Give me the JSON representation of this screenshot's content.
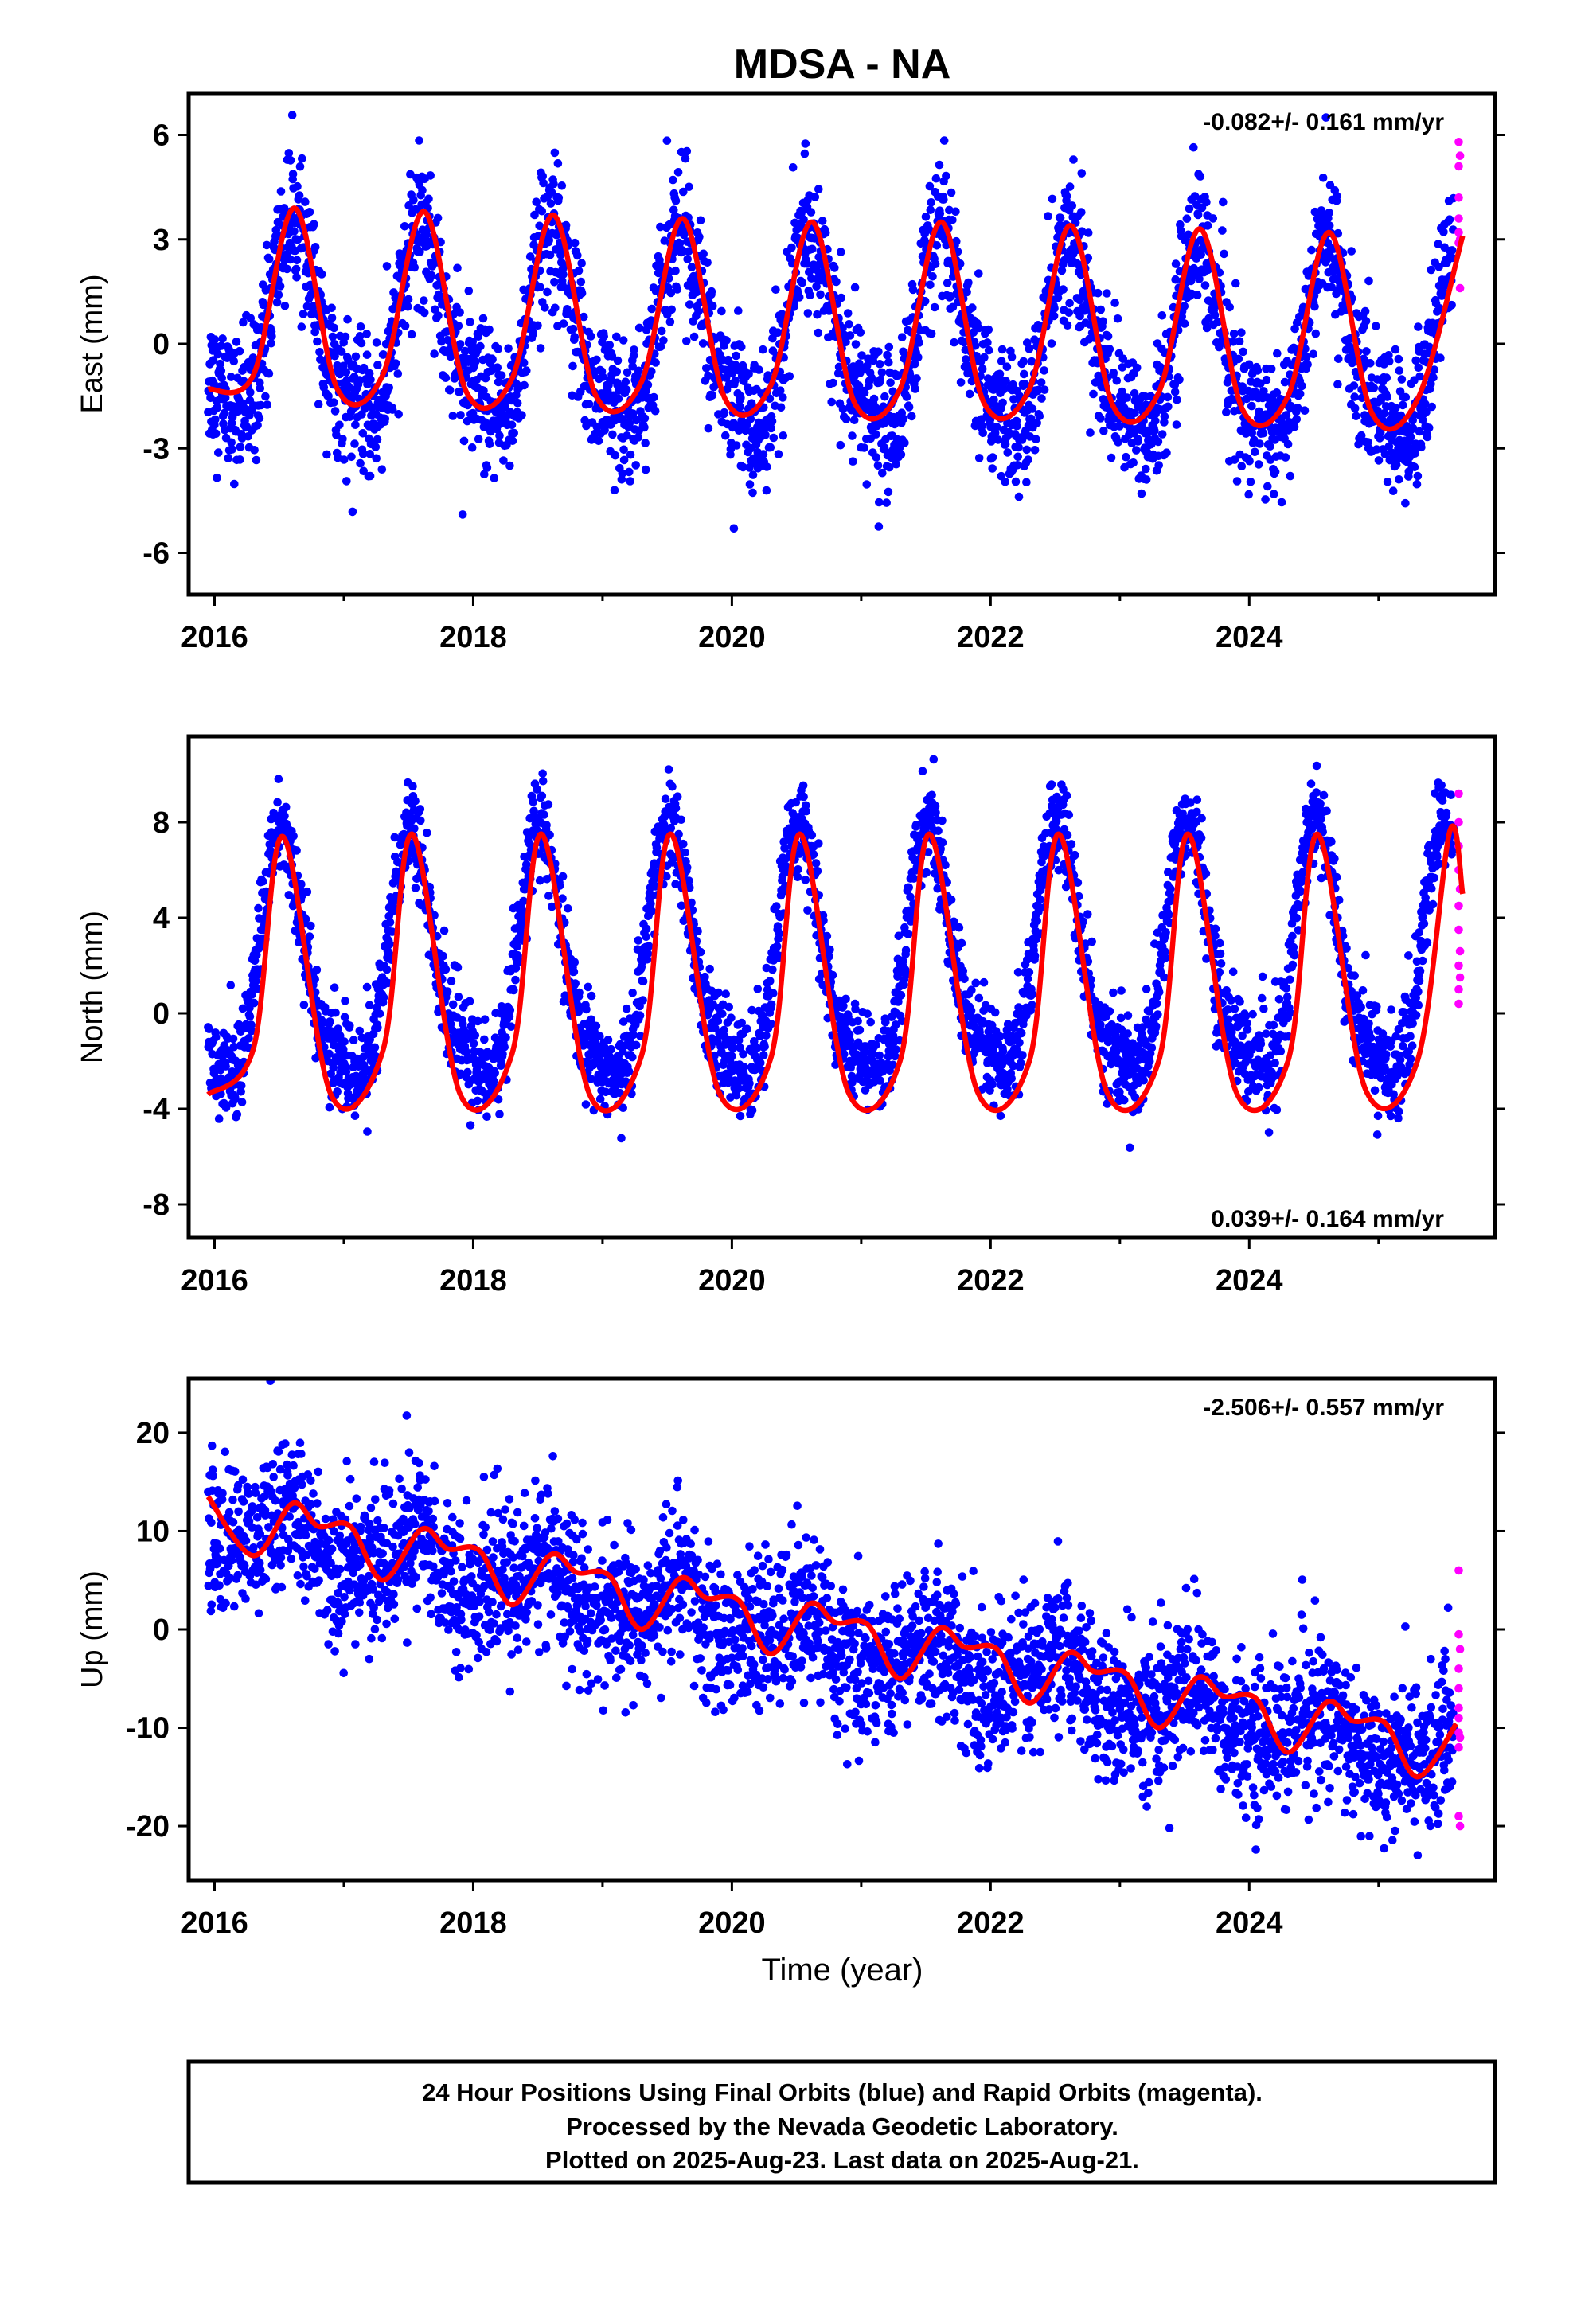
{
  "figure": {
    "title": "MDSA - NA",
    "xlabel": "Time (year)",
    "footer_lines": [
      "24 Hour Positions Using Final Orbits (blue) and Rapid Orbits (magenta).",
      "Processed by the Nevada Geodetic Laboratory.",
      "Plotted on 2025-Aug-23. Last data on 2025-Aug-21."
    ]
  },
  "colors": {
    "final_orbits": "#0000ff",
    "rapid_orbits": "#ff00ff",
    "model_fit": "#ff0000",
    "axes": "#000000"
  },
  "chart_data": [
    {
      "type": "scatter",
      "ylabel": "East (mm)",
      "rate_label": "-0.082+/- 0.161 mm/yr",
      "rate_value": -0.082,
      "rate_uncertainty": 0.161,
      "rate_position": "top-right",
      "xlim": [
        2015.8,
        2025.9
      ],
      "ylim": [
        -7.2,
        7.2
      ],
      "xticks": [
        2016,
        2018,
        2020,
        2022,
        2024
      ],
      "yticks": [
        -6,
        -3,
        0,
        3,
        6
      ],
      "model": {
        "offset": 0.0,
        "trend": -0.082,
        "annual_amp": 2.6,
        "annual_peak": 0.62,
        "semiannual_amp": 0.7,
        "semiannual_peak": 0.58,
        "scatter": 1.0
      },
      "model_curve": [
        [
          2015.95,
          -1.3
        ],
        [
          2016.3,
          -0.9
        ],
        [
          2016.62,
          3.9
        ],
        [
          2016.95,
          -1.3
        ],
        [
          2017.3,
          -0.9
        ],
        [
          2017.62,
          3.8
        ],
        [
          2017.95,
          -1.4
        ],
        [
          2018.3,
          -1.0
        ],
        [
          2018.62,
          3.7
        ],
        [
          2018.95,
          -1.5
        ],
        [
          2019.3,
          -1.1
        ],
        [
          2019.62,
          3.6
        ],
        [
          2019.95,
          -1.6
        ],
        [
          2020.3,
          -1.2
        ],
        [
          2020.62,
          3.5
        ],
        [
          2020.95,
          -1.7
        ],
        [
          2021.3,
          -1.3
        ],
        [
          2021.62,
          3.5
        ],
        [
          2021.95,
          -1.7
        ],
        [
          2022.3,
          -1.3
        ],
        [
          2022.62,
          3.4
        ],
        [
          2022.95,
          -1.8
        ],
        [
          2023.3,
          -1.4
        ],
        [
          2023.62,
          3.3
        ],
        [
          2023.95,
          -1.9
        ],
        [
          2024.3,
          -1.5
        ],
        [
          2024.62,
          3.2
        ],
        [
          2024.95,
          -2.0
        ],
        [
          2025.3,
          -1.6
        ],
        [
          2025.65,
          3.1
        ]
      ],
      "rapid_points": [
        [
          2025.62,
          5.8
        ],
        [
          2025.62,
          5.1
        ],
        [
          2025.62,
          4.2
        ],
        [
          2025.62,
          3.6
        ],
        [
          2025.62,
          3.2
        ],
        [
          2025.62,
          2.9
        ],
        [
          2025.63,
          5.4
        ],
        [
          2025.63,
          1.6
        ],
        [
          2025.63,
          3.0
        ]
      ]
    },
    {
      "type": "scatter",
      "ylabel": "North (mm)",
      "rate_label": "0.039+/- 0.164 mm/yr",
      "rate_value": 0.039,
      "rate_uncertainty": 0.164,
      "rate_position": "bottom-right",
      "xlim": [
        2015.8,
        2025.9
      ],
      "ylim": [
        -9.4,
        11.6
      ],
      "xticks": [
        2016,
        2018,
        2020,
        2022,
        2024
      ],
      "yticks": [
        -8,
        -4,
        0,
        4,
        8
      ],
      "model": {
        "offset": 1.7,
        "trend": 0.039,
        "annual_amp": 5.0,
        "annual_peak": 0.53,
        "semiannual_amp": 1.3,
        "semiannual_peak": 0.5,
        "scatter": 1.0
      },
      "model_curve": [
        [
          2015.95,
          -3.4
        ],
        [
          2016.3,
          -1.5
        ],
        [
          2016.53,
          7.4
        ],
        [
          2016.9,
          -3.4
        ],
        [
          2017.3,
          -1.6
        ],
        [
          2017.53,
          7.5
        ],
        [
          2017.9,
          -3.4
        ],
        [
          2018.3,
          -1.7
        ],
        [
          2018.53,
          7.5
        ],
        [
          2018.9,
          -3.4
        ],
        [
          2019.3,
          -1.8
        ],
        [
          2019.53,
          7.5
        ],
        [
          2019.9,
          -3.3
        ],
        [
          2020.3,
          -1.9
        ],
        [
          2020.53,
          7.5
        ],
        [
          2020.9,
          -3.3
        ],
        [
          2021.3,
          -2.0
        ],
        [
          2021.53,
          7.5
        ],
        [
          2021.9,
          -3.3
        ],
        [
          2022.3,
          -2.0
        ],
        [
          2022.53,
          7.5
        ],
        [
          2022.9,
          -3.3
        ],
        [
          2023.3,
          -2.0
        ],
        [
          2023.53,
          7.5
        ],
        [
          2023.9,
          -3.3
        ],
        [
          2024.3,
          -2.0
        ],
        [
          2024.53,
          7.5
        ],
        [
          2024.9,
          -3.2
        ],
        [
          2025.3,
          -2.0
        ],
        [
          2025.55,
          7.6
        ],
        [
          2025.65,
          5.0
        ]
      ],
      "rapid_points": [
        [
          2025.62,
          9.2
        ],
        [
          2025.62,
          8.0
        ],
        [
          2025.62,
          7.0
        ],
        [
          2025.62,
          6.0
        ],
        [
          2025.62,
          4.5
        ],
        [
          2025.62,
          3.5
        ],
        [
          2025.62,
          2.0
        ],
        [
          2025.62,
          1.0
        ],
        [
          2025.62,
          0.4
        ],
        [
          2025.63,
          5.2
        ],
        [
          2025.63,
          2.6
        ],
        [
          2025.63,
          1.5
        ]
      ]
    },
    {
      "type": "scatter",
      "ylabel": "Up (mm)",
      "rate_label": "-2.506+/- 0.557 mm/yr",
      "rate_value": -2.506,
      "rate_uncertainty": 0.557,
      "rate_position": "top-right",
      "xlim": [
        2015.8,
        2025.9
      ],
      "ylim": [
        -25.5,
        25.5
      ],
      "xticks": [
        2016,
        2018,
        2020,
        2022,
        2024
      ],
      "yticks": [
        -20,
        -10,
        0,
        10,
        20
      ],
      "model": {
        "offset": -0.5,
        "trend": -2.506,
        "annual_amp": 2.2,
        "annual_peak": 0.55,
        "semiannual_amp": 0.8,
        "semiannual_peak": 0.1,
        "scatter": 3.8
      },
      "model_curve": [
        [
          2015.95,
          13.5
        ],
        [
          2016.3,
          7.5
        ],
        [
          2016.6,
          12.8
        ],
        [
          2016.8,
          10.5
        ],
        [
          2017.05,
          10.5
        ],
        [
          2017.3,
          5.0
        ],
        [
          2017.6,
          10.2
        ],
        [
          2017.8,
          8.2
        ],
        [
          2018.05,
          8.0
        ],
        [
          2018.3,
          2.5
        ],
        [
          2018.6,
          7.6
        ],
        [
          2018.8,
          5.8
        ],
        [
          2019.05,
          5.5
        ],
        [
          2019.3,
          0.0
        ],
        [
          2019.6,
          5.2
        ],
        [
          2019.8,
          3.2
        ],
        [
          2020.05,
          3.0
        ],
        [
          2020.3,
          -2.5
        ],
        [
          2020.6,
          2.6
        ],
        [
          2020.8,
          0.7
        ],
        [
          2021.05,
          0.5
        ],
        [
          2021.3,
          -5.0
        ],
        [
          2021.6,
          0.1
        ],
        [
          2021.8,
          -1.8
        ],
        [
          2022.05,
          -2.0
        ],
        [
          2022.3,
          -7.5
        ],
        [
          2022.6,
          -2.4
        ],
        [
          2022.8,
          -4.3
        ],
        [
          2023.05,
          -4.5
        ],
        [
          2023.3,
          -10.0
        ],
        [
          2023.6,
          -4.9
        ],
        [
          2023.8,
          -6.8
        ],
        [
          2024.05,
          -7.0
        ],
        [
          2024.3,
          -12.5
        ],
        [
          2024.6,
          -7.4
        ],
        [
          2024.8,
          -9.3
        ],
        [
          2025.05,
          -9.5
        ],
        [
          2025.3,
          -15.0
        ],
        [
          2025.6,
          -9.6
        ]
      ],
      "rapid_points": [
        [
          2025.62,
          6.0
        ],
        [
          2025.62,
          -0.5
        ],
        [
          2025.62,
          -4.0
        ],
        [
          2025.62,
          -6.0
        ],
        [
          2025.62,
          -8.0
        ],
        [
          2025.62,
          -9.0
        ],
        [
          2025.62,
          -10.5
        ],
        [
          2025.62,
          -12.0
        ],
        [
          2025.62,
          -19.0
        ],
        [
          2025.63,
          -2.0
        ],
        [
          2025.63,
          -11.0
        ],
        [
          2025.63,
          -20.0
        ]
      ]
    }
  ]
}
